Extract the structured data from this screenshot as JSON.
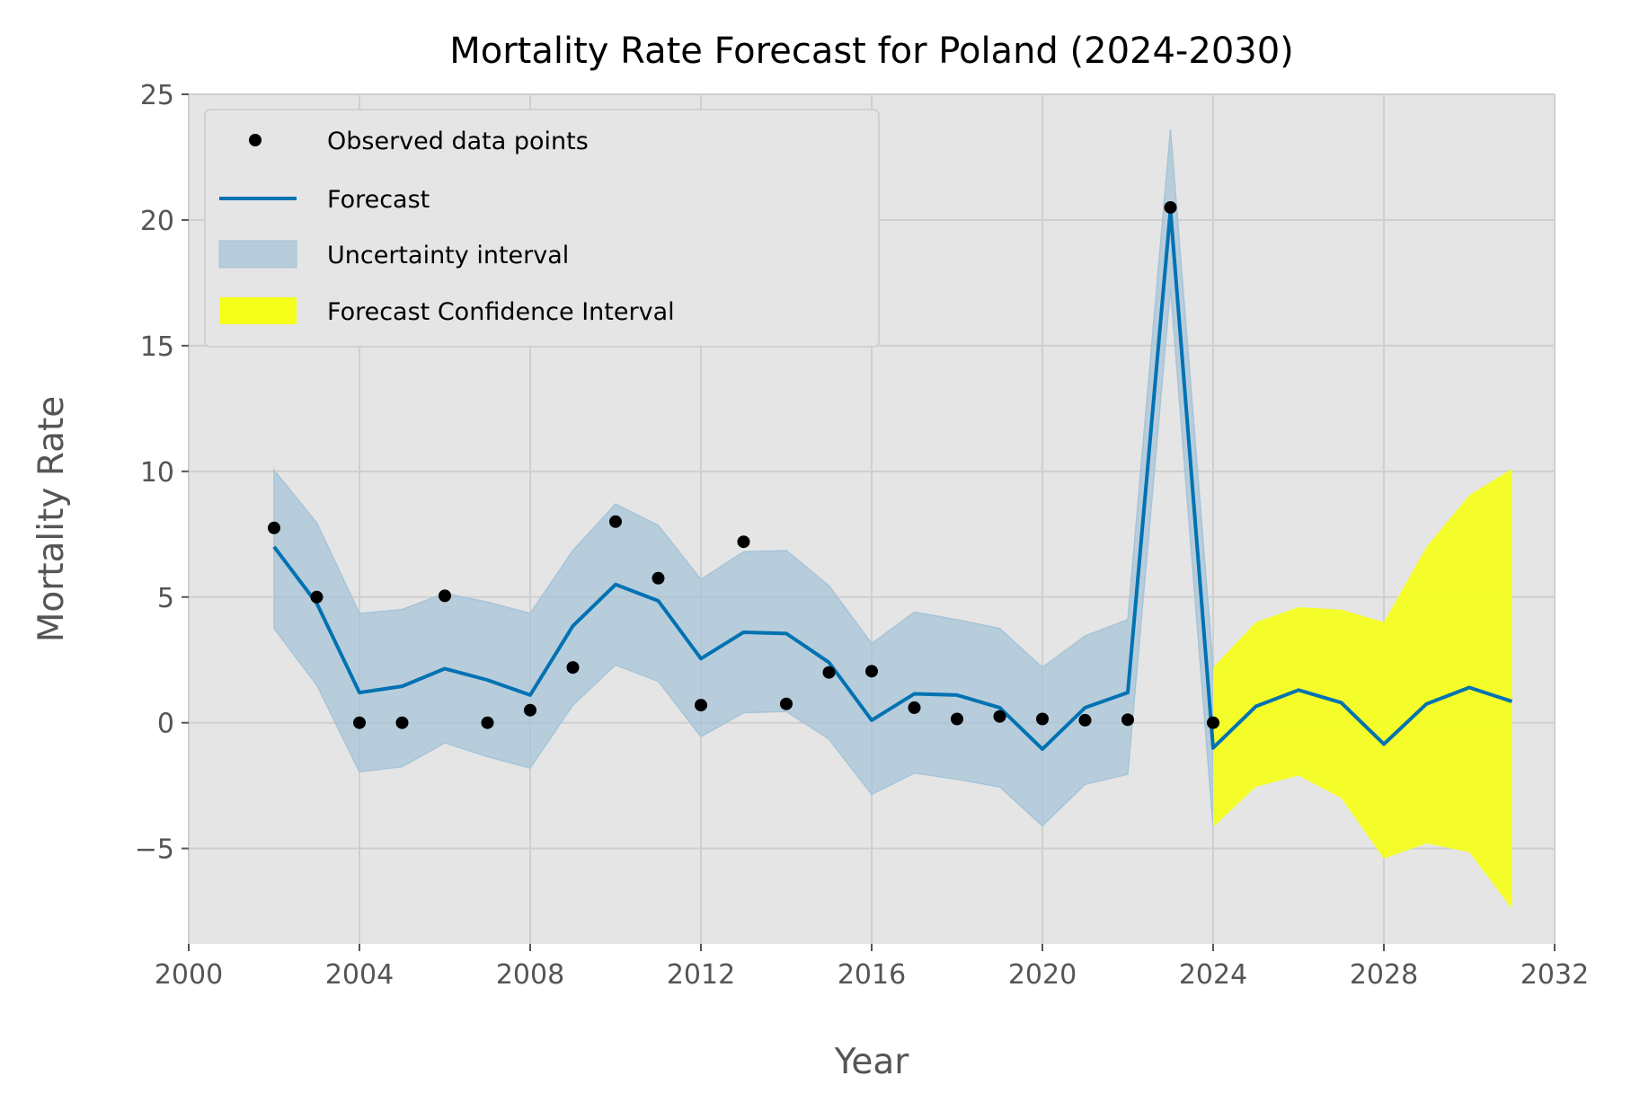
{
  "chart_data": {
    "type": "line",
    "title": "Mortality Rate Forecast for Poland (2024-2030)",
    "xlabel": "Year",
    "ylabel": "Mortality Rate",
    "xlim": [
      2000,
      2032
    ],
    "ylim": [
      -8.8,
      25
    ],
    "xticks": [
      2000,
      2004,
      2008,
      2012,
      2016,
      2020,
      2024,
      2028,
      2032
    ],
    "yticks": [
      -5,
      0,
      5,
      10,
      15,
      20,
      25
    ],
    "ytick_labels": [
      "−5",
      "0",
      "5",
      "10",
      "15",
      "20",
      "25"
    ],
    "grid": true,
    "legend_position": "top-left",
    "legend": [
      "Observed data points",
      "Forecast",
      "Uncertainty interval",
      "Forecast Confidence Interval"
    ],
    "colors": {
      "plot_background": "#e5e5e5",
      "grid": "#cfcfcf",
      "observed": "#000000",
      "forecast": "#0072b2",
      "uncertainty": "#a7c4d8",
      "forecast_ci": "#f5ff1a"
    },
    "observed": {
      "name": "Observed data points",
      "x": [
        2002,
        2003,
        2004,
        2005,
        2006,
        2007,
        2008,
        2009,
        2010,
        2011,
        2012,
        2013,
        2014,
        2015,
        2016,
        2017,
        2018,
        2019,
        2020,
        2021,
        2022,
        2023,
        2024
      ],
      "y": [
        7.75,
        5.0,
        0.0,
        0.0,
        5.05,
        0.0,
        0.5,
        2.2,
        8.0,
        5.75,
        0.7,
        7.2,
        0.75,
        2.0,
        2.05,
        0.6,
        0.15,
        0.25,
        0.15,
        0.1,
        0.12,
        20.5,
        0.0
      ]
    },
    "forecast": {
      "name": "Forecast",
      "x": [
        2002,
        2003,
        2004,
        2005,
        2006,
        2007,
        2008,
        2009,
        2010,
        2011,
        2012,
        2013,
        2014,
        2015,
        2016,
        2017,
        2018,
        2019,
        2020,
        2021,
        2022,
        2023,
        2024,
        2025,
        2026,
        2027,
        2028,
        2029,
        2030,
        2031
      ],
      "y": [
        7.0,
        4.75,
        1.2,
        1.45,
        2.15,
        1.7,
        1.1,
        3.85,
        5.5,
        4.85,
        2.55,
        3.6,
        3.55,
        2.4,
        0.1,
        1.15,
        1.1,
        0.6,
        -1.05,
        0.6,
        1.2,
        20.4,
        -1.0,
        0.65,
        1.3,
        0.8,
        -0.85,
        0.75,
        1.4,
        0.85
      ]
    },
    "uncertainty_interval": {
      "name": "Uncertainty interval",
      "x": [
        2002,
        2003,
        2004,
        2005,
        2006,
        2007,
        2008,
        2009,
        2010,
        2011,
        2012,
        2013,
        2014,
        2015,
        2016,
        2017,
        2018,
        2019,
        2020,
        2021,
        2022,
        2023,
        2024
      ],
      "lower": [
        3.75,
        1.5,
        -1.95,
        -1.75,
        -0.8,
        -1.35,
        -1.8,
        0.7,
        2.3,
        1.65,
        -0.55,
        0.4,
        0.45,
        -0.65,
        -2.85,
        -2.0,
        -2.25,
        -2.55,
        -4.1,
        -2.45,
        -2.05,
        17.3,
        -4.15
      ],
      "upper": [
        10.05,
        7.95,
        4.35,
        4.5,
        5.15,
        4.8,
        4.35,
        6.85,
        8.7,
        7.85,
        5.7,
        6.8,
        6.85,
        5.45,
        3.15,
        4.4,
        4.1,
        3.75,
        2.2,
        3.45,
        4.1,
        23.6,
        2.2
      ]
    },
    "forecast_confidence_interval": {
      "name": "Forecast Confidence Interval",
      "x": [
        2024,
        2025,
        2026,
        2027,
        2028,
        2029,
        2030,
        2031
      ],
      "lower": [
        -4.15,
        -2.55,
        -2.1,
        -3.0,
        -5.4,
        -4.8,
        -5.15,
        -7.4
      ],
      "upper": [
        2.2,
        4.0,
        4.6,
        4.5,
        4.0,
        7.0,
        9.05,
        10.1
      ]
    }
  }
}
